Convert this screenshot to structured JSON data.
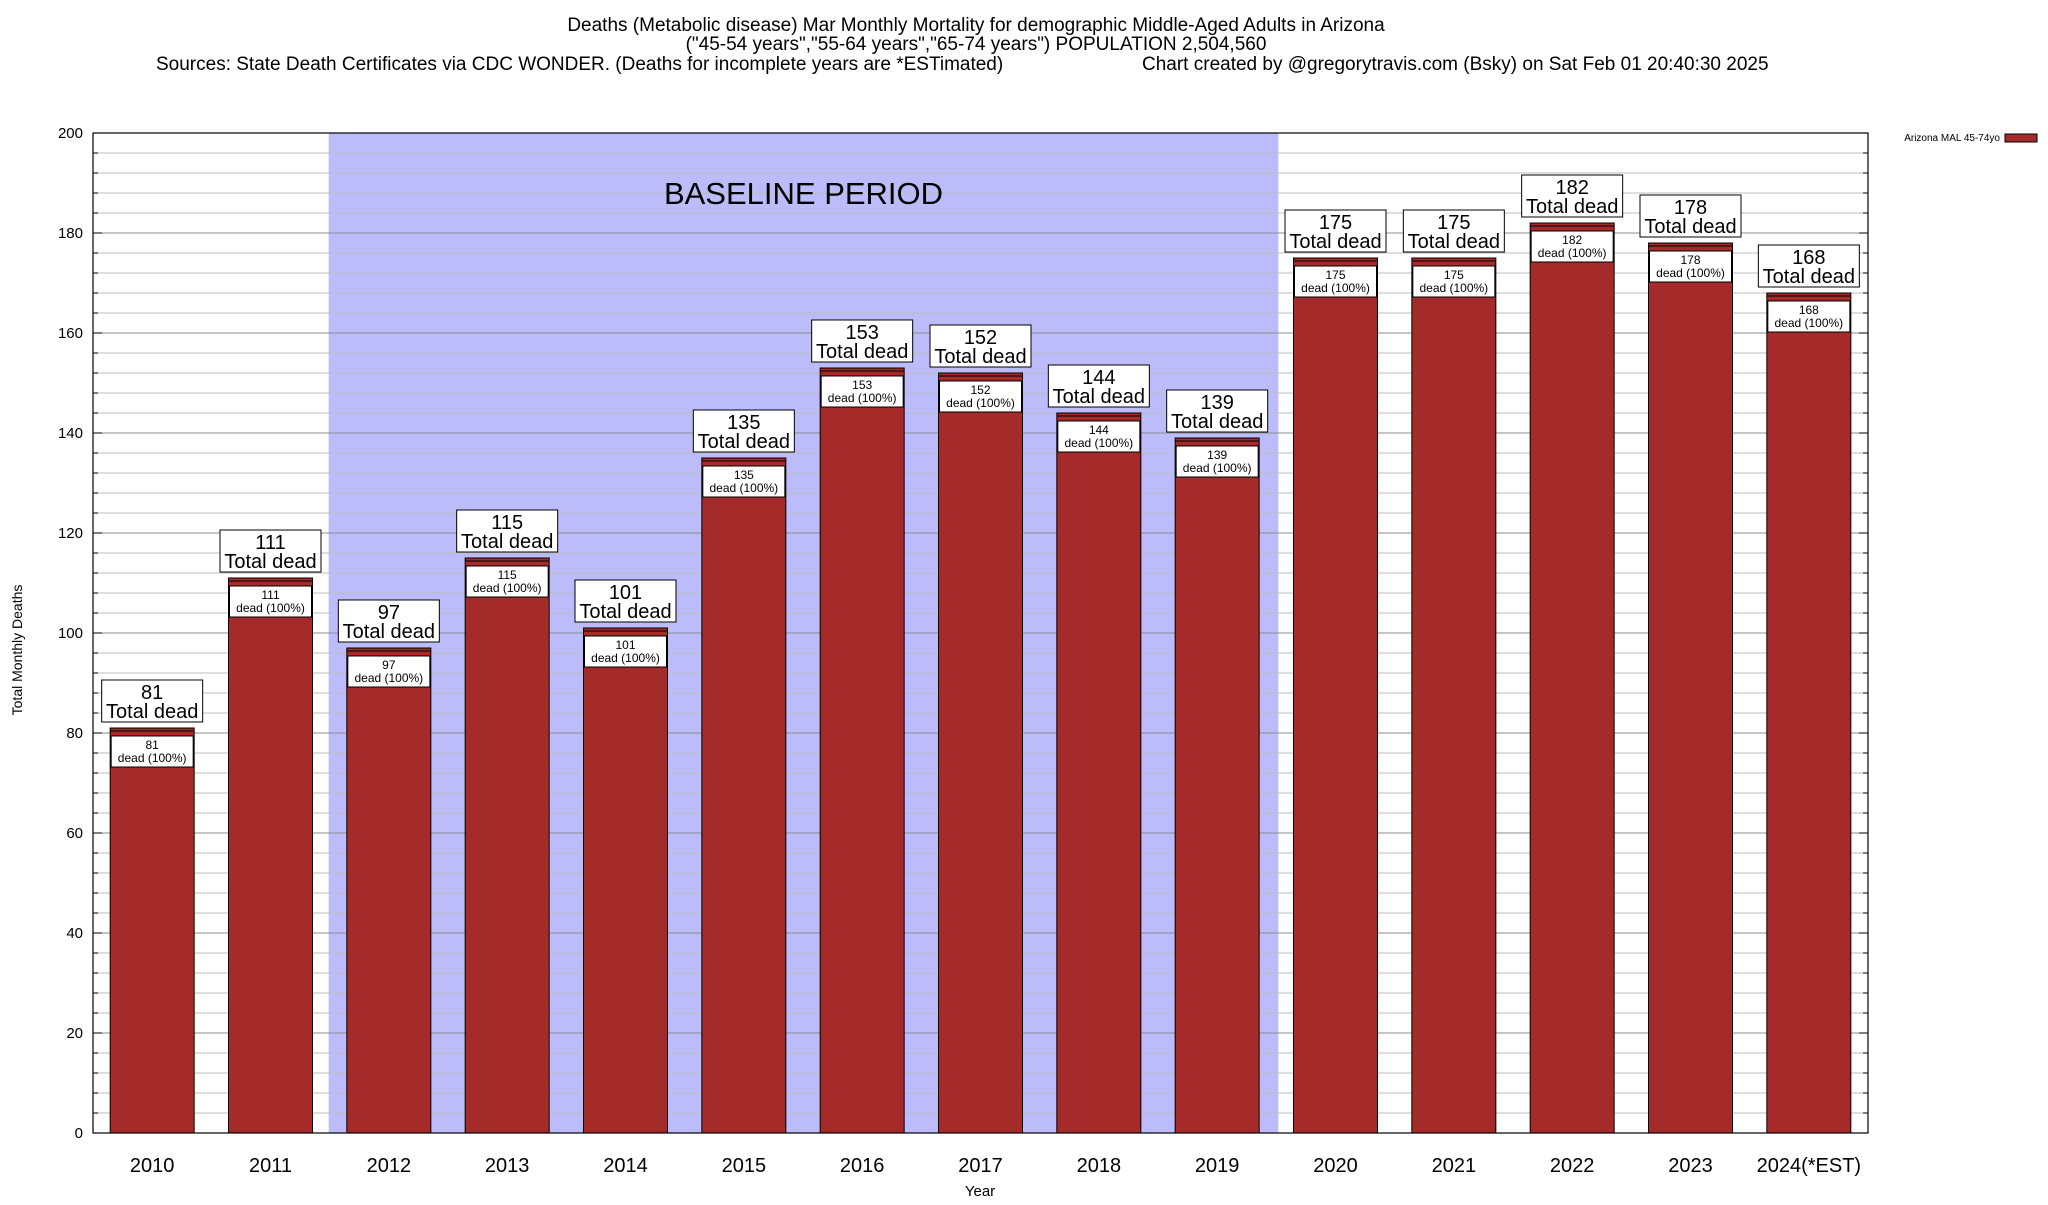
{
  "title_lines": [
    "Deaths (Metabolic disease) Mar Monthly Mortality for demographic Middle-Aged Adults in Arizona",
    "(\"45-54 years\",\"55-64 years\",\"65-74 years\") POPULATION 2,504,560",
    "Sources: State Death Certificates via CDC WONDER. (Deaths for incomplete years are *ESTimated)",
    "Chart created by @gregorytravis.com (Bsky) on Sat Feb 01 20:40:30 2025"
  ],
  "chart_data": {
    "type": "bar",
    "xlabel": "Year",
    "ylabel": "Total Monthly Deaths",
    "ylim": [
      0,
      200
    ],
    "yticks": [
      0,
      20,
      40,
      60,
      80,
      100,
      120,
      140,
      160,
      180,
      200
    ],
    "categories": [
      "2010",
      "2011",
      "2012",
      "2013",
      "2014",
      "2015",
      "2016",
      "2017",
      "2018",
      "2019",
      "2020",
      "2021",
      "2022",
      "2023",
      "2024(*EST)"
    ],
    "series": [
      {
        "name": "Arizona MAL 45-74yo",
        "color": "#a52a2a",
        "values": [
          81,
          111,
          97,
          115,
          101,
          135,
          153,
          152,
          144,
          139,
          175,
          175,
          182,
          178,
          168
        ]
      }
    ],
    "total_label": "Total dead",
    "inner_label": "dead (100%)",
    "baseline": {
      "label": "BASELINE PERIOD",
      "from": "2012",
      "to": "2019",
      "color": "#bcbcfb"
    },
    "grid": true,
    "legend": "top-right"
  }
}
